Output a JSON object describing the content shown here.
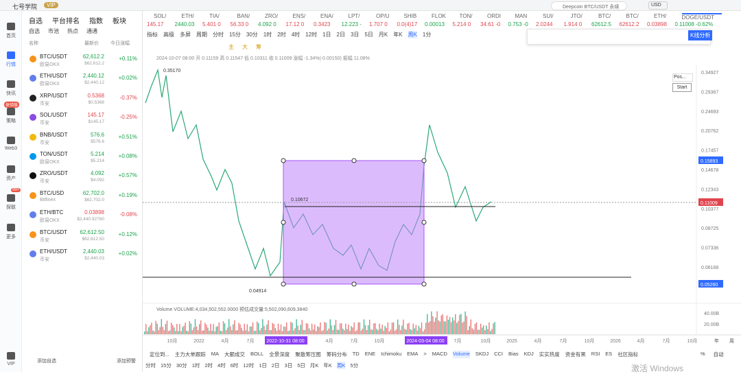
{
  "app": {
    "name": "七号学院",
    "badge": "VIP"
  },
  "nav": [
    "首页",
    "行情",
    "快讯",
    "策略",
    "Web3",
    "资产",
    "探联",
    "更多",
    "VIP"
  ],
  "nav_badges": [
    "体验版",
    "99+"
  ],
  "watch_tabs": [
    "自选",
    "平台排名",
    "指数",
    "板块"
  ],
  "watch_subtabs": [
    "自选",
    "市池",
    "热点",
    "通通"
  ],
  "watch_header": [
    "名称",
    "最新价",
    "今日涨幅"
  ],
  "watchlist": [
    {
      "symbol": "BTC/USDT",
      "exchange": "欧易OKX",
      "price": "62,612.2",
      "price_sub": "$62,612.2",
      "change": "+0.11%"
    },
    {
      "symbol": "ETH/USDT",
      "exchange": "欧易OKX",
      "price": "2,440.12",
      "price_sub": "$2,440.12",
      "change": "+0.02%"
    },
    {
      "symbol": "XRP/USDT",
      "exchange": "币安",
      "price": "0.5368",
      "price_sub": "$0.5368",
      "change": "-0.37%"
    },
    {
      "symbol": "SOL/USDT",
      "exchange": "币安",
      "price": "145.17",
      "price_sub": "$145.17",
      "change": "-0.25%"
    },
    {
      "symbol": "BNB/USDT",
      "exchange": "币安",
      "price": "576.6",
      "price_sub": "$576.6",
      "change": "+0.51%"
    },
    {
      "symbol": "TON/USDT",
      "exchange": "欧易OKX",
      "price": "5.214",
      "price_sub": "$5.214",
      "change": "+0.08%"
    },
    {
      "symbol": "ZRO/USDT",
      "exchange": "币安",
      "price": "4.092",
      "price_sub": "$4.092",
      "change": "+0.57%"
    },
    {
      "symbol": "BTC/USD",
      "exchange": "Bitfinex",
      "price": "62,702.0",
      "price_sub": "$62,702.0",
      "change": "+0.19%"
    },
    {
      "symbol": "ETH/BTC",
      "exchange": "欧易OKX",
      "price": "0.03898",
      "price_sub": "$2,440.92760",
      "change": "-0.08%"
    },
    {
      "symbol": "BTC/USDT",
      "exchange": "币安",
      "price": "62,612.50",
      "price_sub": "$62,612.50",
      "change": "+0.12%"
    },
    {
      "symbol": "ETH/USDT",
      "exchange": "币安",
      "price": "2,440.03",
      "price_sub": "$2,440.03",
      "change": "+0.02%"
    }
  ],
  "watch_footer": [
    "添加自选",
    "添加预警"
  ],
  "search": "Deepcoin BTC/USDT 永续",
  "currency": "USD",
  "tickers": [
    {
      "name": "SOL/",
      "price": "145.17"
    },
    {
      "name": "ETH/",
      "price": "2440.03"
    },
    {
      "name": "TIA/",
      "price": "5.401 0"
    },
    {
      "name": "BAN/",
      "price": "56.33 0"
    },
    {
      "name": "ZRO/",
      "price": "4.092 0"
    },
    {
      "name": "ENS/",
      "price": "17.12 0"
    },
    {
      "name": "ENA/",
      "price": "0.3423"
    },
    {
      "name": "LPT/",
      "price": "12.223 -"
    },
    {
      "name": "OP/U",
      "price": "1.707 0"
    },
    {
      "name": "SHIB",
      "price": "0.0(4)17"
    },
    {
      "name": "FLOK",
      "price": "0.00013"
    },
    {
      "name": "TON/",
      "price": "5.214 0"
    },
    {
      "name": "ORDI",
      "price": "34.61 -0"
    },
    {
      "name": "MAN",
      "price": "0.753 -0"
    },
    {
      "name": "SUI/",
      "price": "2.0244"
    },
    {
      "name": "JTO/",
      "price": "1.914 0"
    },
    {
      "name": "BTC/",
      "price": "62612.5"
    },
    {
      "name": "BTC/",
      "price": "62612.2"
    },
    {
      "name": "ETH/",
      "price": "0.03898"
    },
    {
      "name": "DOGE/USDT",
      "price": "0.11008 -0.62%"
    }
  ],
  "toolbar": [
    "指标",
    "高级",
    "多屏",
    "周期",
    "分时",
    "15分",
    "30分",
    "1时",
    "2时",
    "4时",
    "12时",
    "1日",
    "2日",
    "3日",
    "5日",
    "月K",
    "年K",
    "周K",
    "1分"
  ],
  "draw_tools": [
    "主",
    "大",
    "筹"
  ],
  "kline_button": "K线分析",
  "chart": {
    "ohlc": "2024-10-07 08:00  开 0.11159  高 0.11547  低 0.10311  收 0.11009  涨幅 -1.34%(-0.00150)  振幅 11.08%",
    "price_axis": [
      "0.34927",
      "0.29367",
      "0.24693",
      "0.20762",
      "0.17457",
      "0.14678",
      "0.12343",
      "0.10377",
      "0.08725",
      "0.07336",
      "0.06168"
    ],
    "price_tags": [
      "0.15893",
      "0.11009",
      "0.05260"
    ],
    "annotations": [
      "0.35170",
      "0.10672",
      "0.04914"
    ],
    "volume": "Volume  VOLUME:4,034,502,552.0000  预估成交量:5,502,090,609.3840",
    "volume_axis": [
      "40.00B",
      "20.00B"
    ],
    "x_axis": [
      "10月",
      "2022",
      "4月",
      "7月",
      "2022-10-31 08:00",
      "4月",
      "7月",
      "10月",
      "2024-03-04 08:00",
      "7月",
      "10月",
      "2025",
      "4月",
      "7月",
      "10月",
      "2026",
      "4月",
      "7月",
      "10月"
    ],
    "scale_buttons": [
      "年",
      "周"
    ],
    "popup": [
      "Pos...",
      "Start"
    ]
  },
  "indicators": [
    "定位到...",
    "主力大单跟踪",
    "MA",
    "大额成交",
    "BOLL",
    "全景深度",
    "聚散筹压图",
    "筹码分布",
    "TD",
    "ENE",
    "Ichimoku",
    "EMA",
    ">",
    "MACD",
    "Volume",
    "SKDJ",
    "CCI",
    "Bias",
    "KDJ",
    "实实热度",
    "资金有黑",
    "RSI",
    "ES",
    "社区指标"
  ],
  "indicator_right": [
    "%",
    "自动"
  ],
  "periods": [
    "分时",
    "15分",
    "30分",
    "1时",
    "2时",
    "4时",
    "6时",
    "12时",
    "1日",
    "2日",
    "3日",
    "5日",
    "月K",
    "年K",
    "周K",
    "5分"
  ],
  "watermark": "激活 Windows"
}
